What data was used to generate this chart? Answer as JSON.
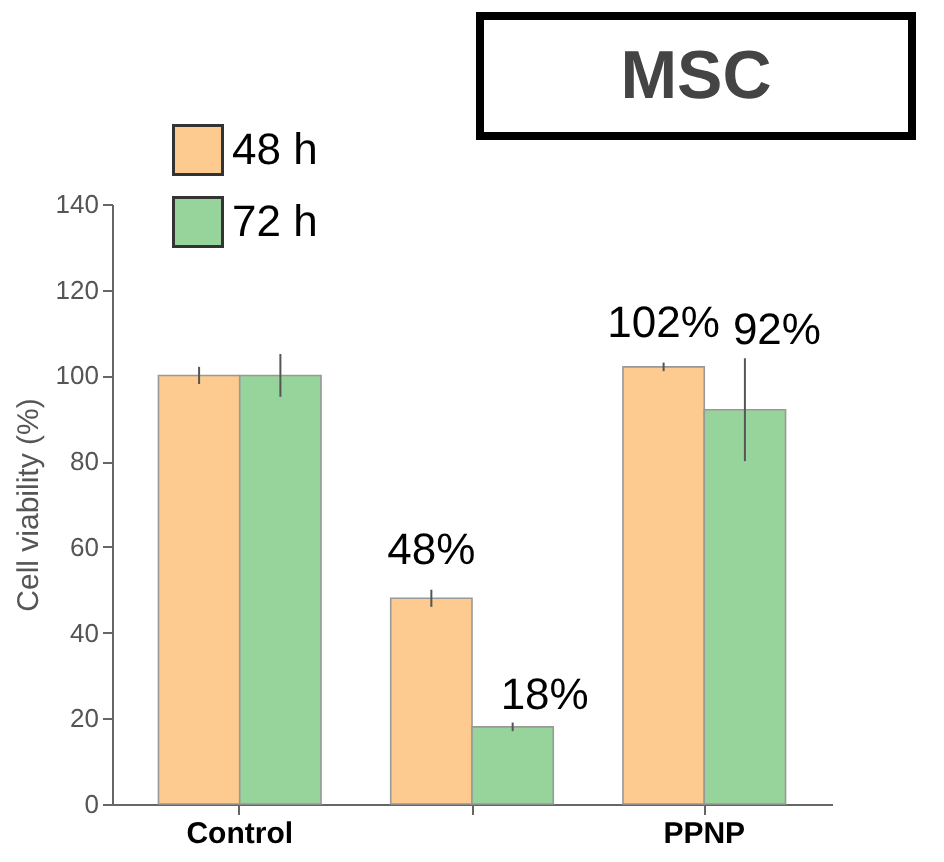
{
  "chart_data": {
    "type": "bar",
    "title": "MSC",
    "ylabel": "Cell viability (%)",
    "categories": [
      "Control",
      null,
      "PPNP"
    ],
    "series": [
      {
        "name": "48 h",
        "color": "#fdca8f",
        "values": [
          100,
          48,
          102
        ],
        "errors": [
          2,
          2,
          1
        ],
        "value_labels": [
          null,
          "48%",
          "102%"
        ]
      },
      {
        "name": "72 h",
        "color": "#97d49b",
        "values": [
          100,
          18,
          92
        ],
        "errors": [
          5,
          1,
          12
        ],
        "value_labels": [
          null,
          "18%",
          "92%"
        ]
      }
    ],
    "ylim": [
      0,
      140
    ],
    "yticks": [
      0,
      20,
      40,
      60,
      80,
      100,
      120,
      140
    ],
    "grid": false,
    "legend": "top left"
  }
}
